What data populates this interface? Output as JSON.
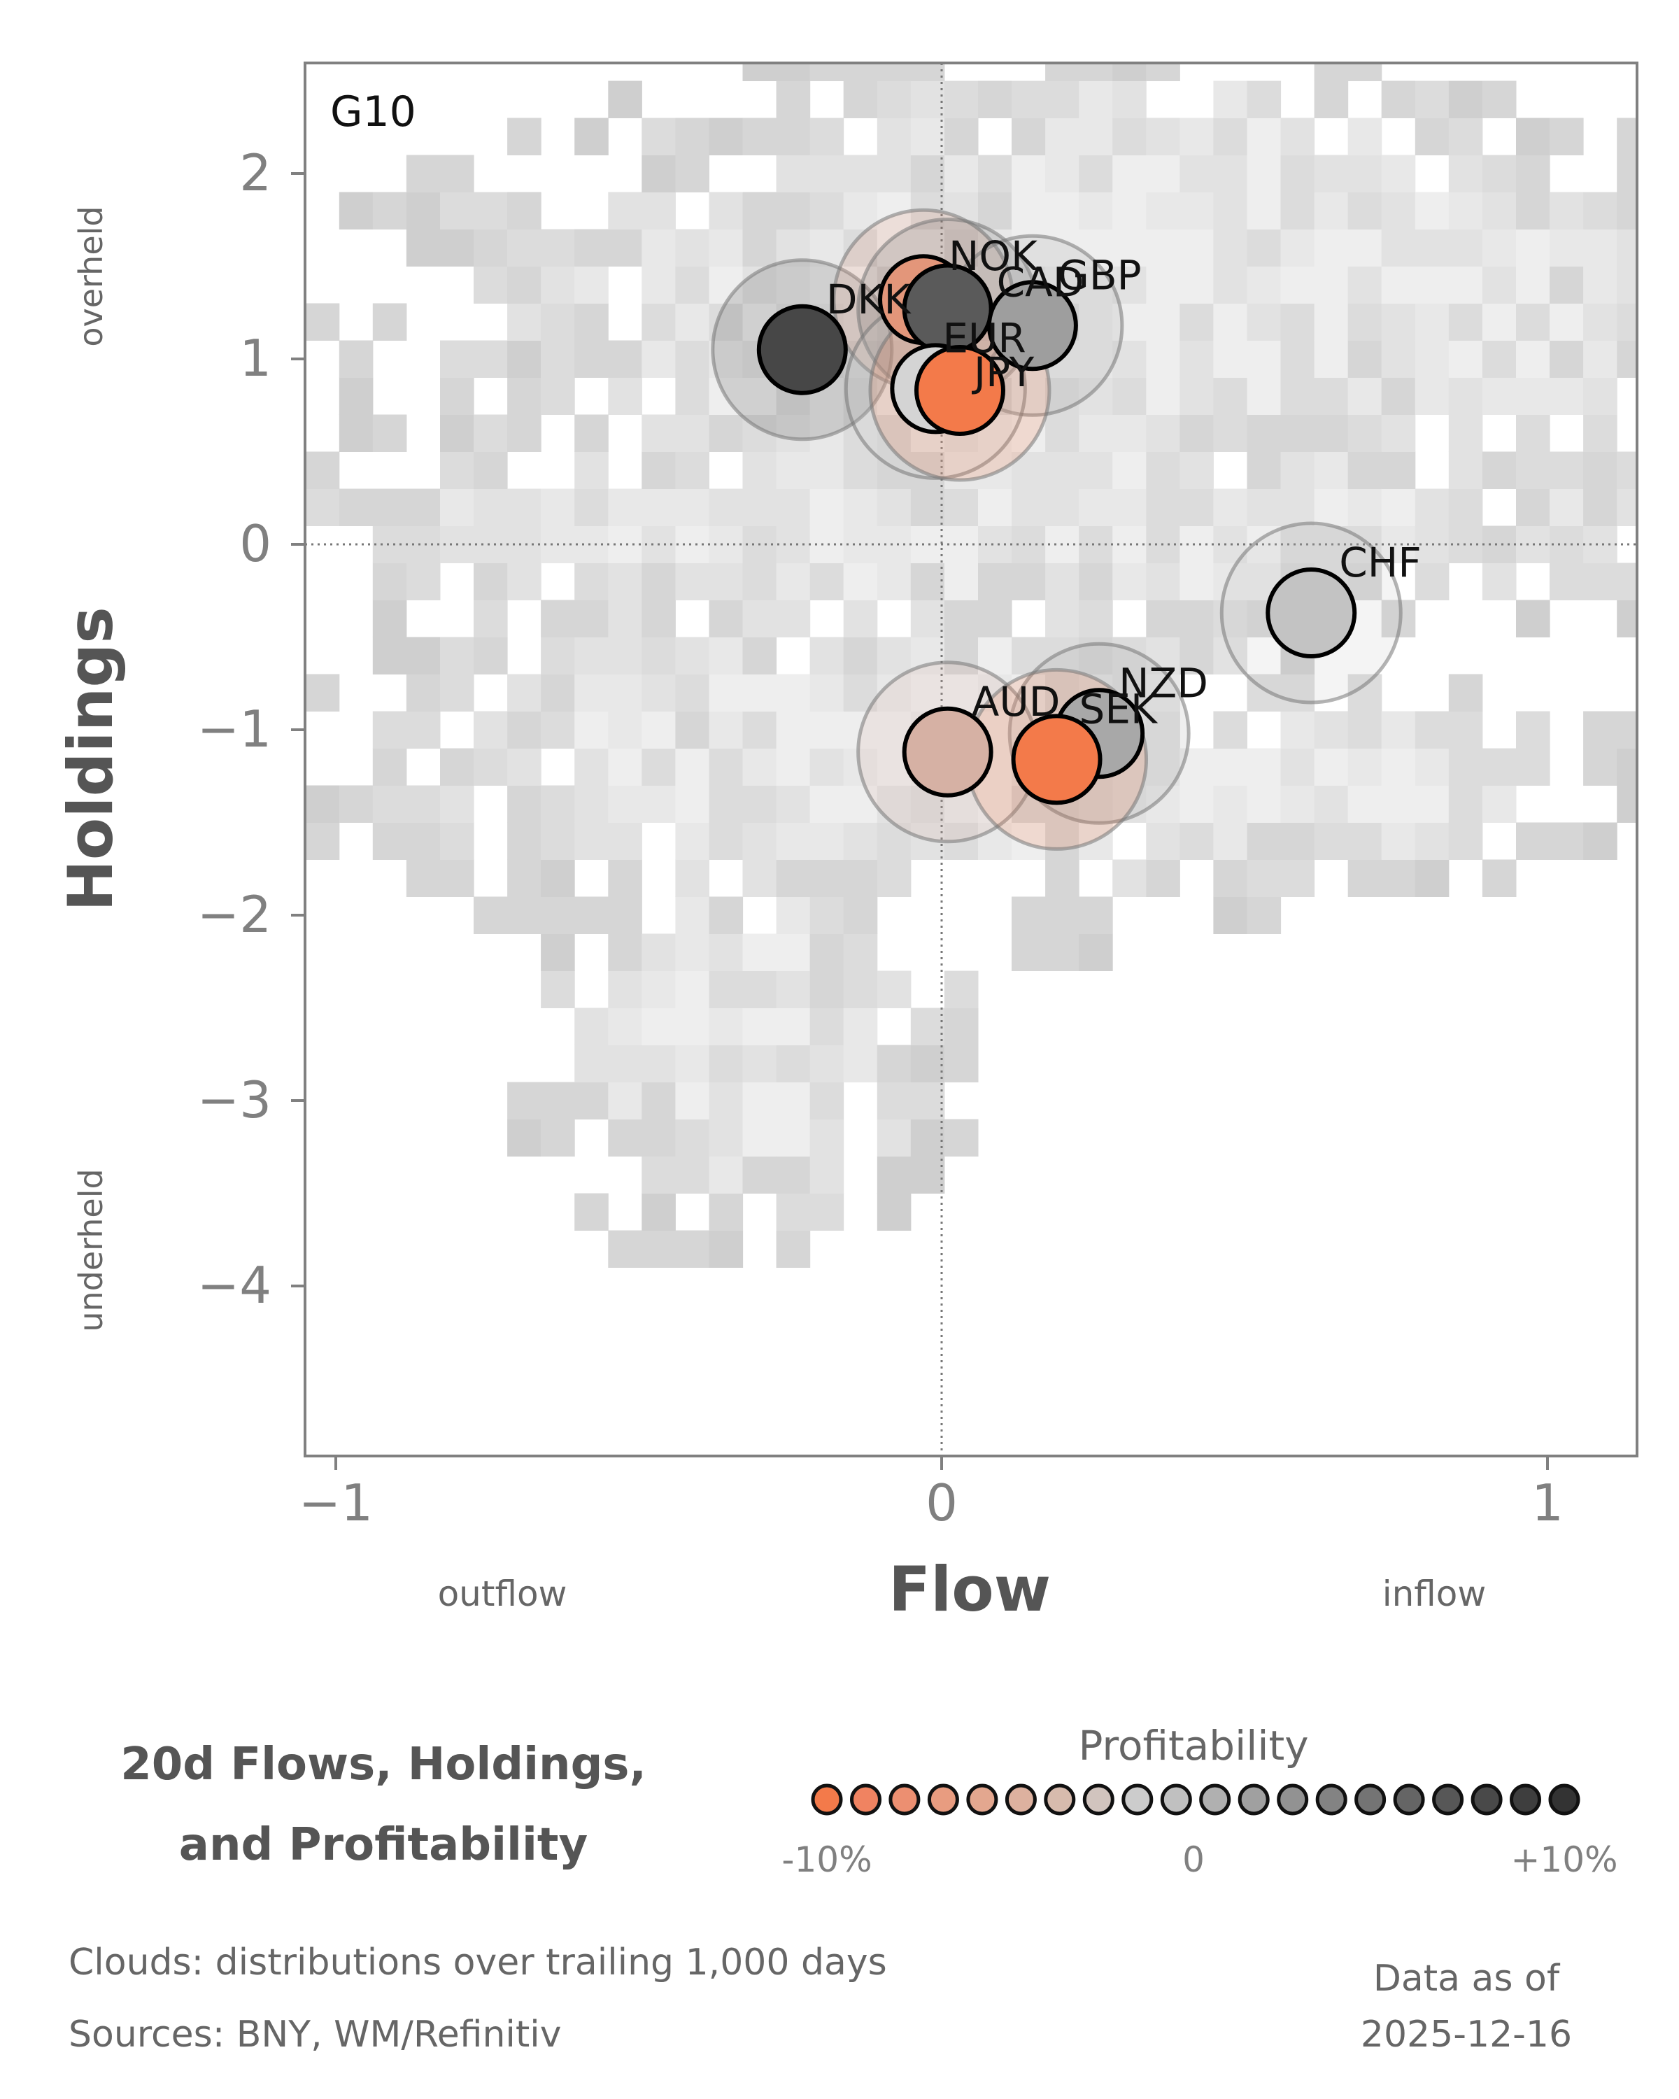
{
  "chart_data": {
    "type": "scatter",
    "panel_label": "G10",
    "xlabel": "Flow",
    "ylabel": "Holdings",
    "xlim": [
      -1.05,
      1.15
    ],
    "ylim": [
      -4.9,
      2.6
    ],
    "x_ticks": [
      {
        "value": -1,
        "label": "−1"
      },
      {
        "value": 0,
        "label": "0"
      },
      {
        "value": 1,
        "label": "1"
      }
    ],
    "y_ticks": [
      {
        "value": 2,
        "label": "2"
      },
      {
        "value": 1,
        "label": "1"
      },
      {
        "value": 0,
        "label": "0"
      },
      {
        "value": -1,
        "label": "−1"
      },
      {
        "value": -2,
        "label": "−2"
      },
      {
        "value": -3,
        "label": "−3"
      },
      {
        "value": -4,
        "label": "−4"
      }
    ],
    "x_side_labels": {
      "left": "outflow",
      "right": "inflow"
    },
    "y_side_labels": {
      "top": "overheld",
      "bottom": "underheld"
    },
    "reference_lines": {
      "x": 0,
      "y": 0,
      "style": "dotted"
    },
    "background": "2D histogram clouds of trailing distributions (grey)",
    "points": [
      {
        "currency": "DKK",
        "flow": -0.23,
        "holdings": 1.05,
        "profitability": 0.1,
        "color": "#474747"
      },
      {
        "currency": "NOK",
        "flow": -0.03,
        "holdings": 1.32,
        "profitability": -0.06,
        "color": "#E3967A"
      },
      {
        "currency": "CAD",
        "flow": 0.01,
        "holdings": 1.27,
        "profitability": 0.09,
        "color": "#5A5A5A"
      },
      {
        "currency": "GBP",
        "flow": 0.15,
        "holdings": 1.18,
        "profitability": 0.04,
        "color": "#9E9E9E"
      },
      {
        "currency": "EUR",
        "flow": -0.01,
        "holdings": 0.84,
        "profitability": 0.01,
        "color": "#D4D4D4"
      },
      {
        "currency": "JPY",
        "flow": 0.03,
        "holdings": 0.83,
        "profitability": -0.1,
        "color": "#F37A4A"
      },
      {
        "currency": "CHF",
        "flow": 0.61,
        "holdings": -0.37,
        "profitability": 0.02,
        "color": "#C3C3C3"
      },
      {
        "currency": "NZD",
        "flow": 0.26,
        "holdings": -1.02,
        "profitability": 0.05,
        "color": "#A8A8A8"
      },
      {
        "currency": "AUD",
        "flow": 0.01,
        "holdings": -1.12,
        "profitability": -0.03,
        "color": "#D6B1A4"
      },
      {
        "currency": "SEK",
        "flow": 0.19,
        "holdings": -1.16,
        "profitability": -0.1,
        "color": "#F37A4A"
      }
    ],
    "legend": {
      "title": "Profitability",
      "min_label": "-10%",
      "mid_label": "0",
      "max_label": "+10%",
      "colors": [
        "#F37A4A",
        "#F08361",
        "#EC8F71",
        "#E89C80",
        "#E3A78F",
        "#DDB19F",
        "#D7BBAD",
        "#D1C4BE",
        "#CCCCCC",
        "#C0C0C0",
        "#B0B0B0",
        "#A0A0A0",
        "#929292",
        "#838383",
        "#747474",
        "#656565",
        "#575757",
        "#494949",
        "#3E3E3E",
        "#333333"
      ]
    }
  },
  "figure": {
    "title_line1": "20d Flows, Holdings,",
    "title_line2": "and Profitability",
    "clouds_note": "Clouds:  distributions over trailing 1,000 days",
    "sources_note": "Sources:  BNY, WM/Refinitiv",
    "data_as_of_label": "Data as of",
    "data_as_of_date": "2025-12-16"
  }
}
